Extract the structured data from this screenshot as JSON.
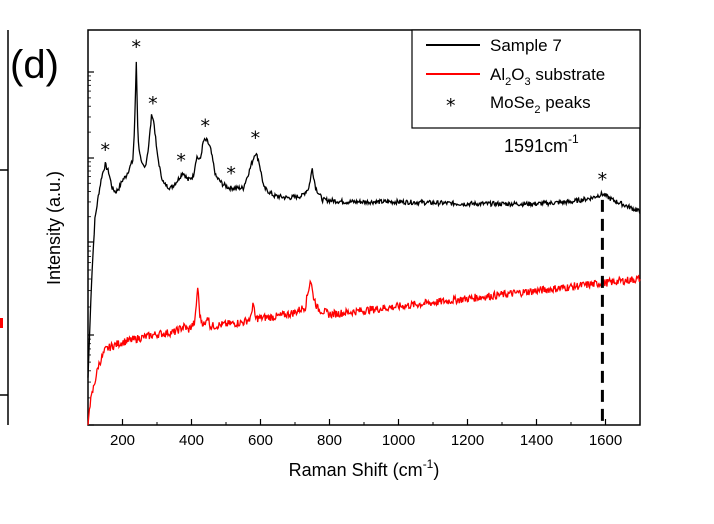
{
  "chart_data": {
    "type": "line",
    "panel_label": "(d)",
    "xlabel": "Raman Shift (cm",
    "xlabel_sup": "-1",
    "xlabel_close": ")",
    "ylabel": "Intensity (a.u.)",
    "xlim": [
      100,
      1700
    ],
    "x_ticks": [
      "200",
      "400",
      "600",
      "800",
      "1000",
      "1200",
      "1400",
      "1600"
    ],
    "log_scale_y": true,
    "y_tick_labels_shown": false,
    "legend_position": "top-right",
    "legend": [
      {
        "label": "Sample 7",
        "color": "#000000",
        "marker": "line"
      },
      {
        "label": "Al",
        "sub1": "2",
        "mid": "O",
        "sub2": "3",
        "tail": " substrate",
        "color": "#ff0000",
        "marker": "line"
      },
      {
        "label": "MoSe",
        "sub1": "2",
        "tail": " peaks",
        "marker": "*"
      }
    ],
    "annotation": {
      "text": "1591cm",
      "sup": "-1",
      "x": 1591
    },
    "series": [
      {
        "name": "Sample 7",
        "color": "#000000",
        "points": [
          [
            100,
            0.12
          ],
          [
            110,
            0.36
          ],
          [
            120,
            0.52
          ],
          [
            130,
            0.58
          ],
          [
            140,
            0.63
          ],
          [
            150,
            0.66
          ],
          [
            160,
            0.64
          ],
          [
            170,
            0.6
          ],
          [
            180,
            0.59
          ],
          [
            190,
            0.6
          ],
          [
            200,
            0.62
          ],
          [
            210,
            0.63
          ],
          [
            220,
            0.65
          ],
          [
            230,
            0.67
          ],
          [
            235,
            0.75
          ],
          [
            240,
            0.92
          ],
          [
            245,
            0.72
          ],
          [
            255,
            0.66
          ],
          [
            265,
            0.65
          ],
          [
            275,
            0.7
          ],
          [
            285,
            0.79
          ],
          [
            292,
            0.76
          ],
          [
            300,
            0.69
          ],
          [
            310,
            0.64
          ],
          [
            320,
            0.61
          ],
          [
            340,
            0.6
          ],
          [
            360,
            0.62
          ],
          [
            375,
            0.64
          ],
          [
            390,
            0.62
          ],
          [
            405,
            0.63
          ],
          [
            415,
            0.68
          ],
          [
            425,
            0.67
          ],
          [
            435,
            0.72
          ],
          [
            445,
            0.72
          ],
          [
            455,
            0.7
          ],
          [
            470,
            0.63
          ],
          [
            490,
            0.61
          ],
          [
            510,
            0.6
          ],
          [
            530,
            0.6
          ],
          [
            550,
            0.6
          ],
          [
            570,
            0.65
          ],
          [
            585,
            0.69
          ],
          [
            595,
            0.67
          ],
          [
            610,
            0.6
          ],
          [
            640,
            0.58
          ],
          [
            680,
            0.575
          ],
          [
            720,
            0.58
          ],
          [
            740,
            0.6
          ],
          [
            750,
            0.65
          ],
          [
            760,
            0.6
          ],
          [
            780,
            0.57
          ],
          [
            850,
            0.565
          ],
          [
            1000,
            0.565
          ],
          [
            1200,
            0.56
          ],
          [
            1400,
            0.56
          ],
          [
            1500,
            0.565
          ],
          [
            1560,
            0.575
          ],
          [
            1591,
            0.585
          ],
          [
            1620,
            0.57
          ],
          [
            1660,
            0.555
          ],
          [
            1700,
            0.54
          ]
        ],
        "peak_markers_x": [
          150,
          240,
          288,
          370,
          440,
          515,
          585,
          1591
        ]
      },
      {
        "name": "Al2O3 substrate",
        "color": "#ff0000",
        "points": [
          [
            100,
            0.0
          ],
          [
            105,
            0.05
          ],
          [
            115,
            0.09
          ],
          [
            130,
            0.15
          ],
          [
            150,
            0.19
          ],
          [
            170,
            0.2
          ],
          [
            200,
            0.21
          ],
          [
            250,
            0.22
          ],
          [
            300,
            0.23
          ],
          [
            350,
            0.235
          ],
          [
            380,
            0.25
          ],
          [
            390,
            0.24
          ],
          [
            410,
            0.26
          ],
          [
            418,
            0.35
          ],
          [
            425,
            0.27
          ],
          [
            440,
            0.25
          ],
          [
            445,
            0.28
          ],
          [
            455,
            0.25
          ],
          [
            500,
            0.255
          ],
          [
            550,
            0.26
          ],
          [
            572,
            0.27
          ],
          [
            578,
            0.31
          ],
          [
            585,
            0.27
          ],
          [
            650,
            0.275
          ],
          [
            700,
            0.285
          ],
          [
            730,
            0.3
          ],
          [
            745,
            0.37
          ],
          [
            752,
            0.33
          ],
          [
            765,
            0.295
          ],
          [
            800,
            0.28
          ],
          [
            850,
            0.285
          ],
          [
            900,
            0.29
          ],
          [
            1000,
            0.3
          ],
          [
            1100,
            0.31
          ],
          [
            1200,
            0.32
          ],
          [
            1300,
            0.33
          ],
          [
            1400,
            0.34
          ],
          [
            1500,
            0.35
          ],
          [
            1600,
            0.36
          ],
          [
            1700,
            0.37
          ]
        ]
      }
    ]
  }
}
